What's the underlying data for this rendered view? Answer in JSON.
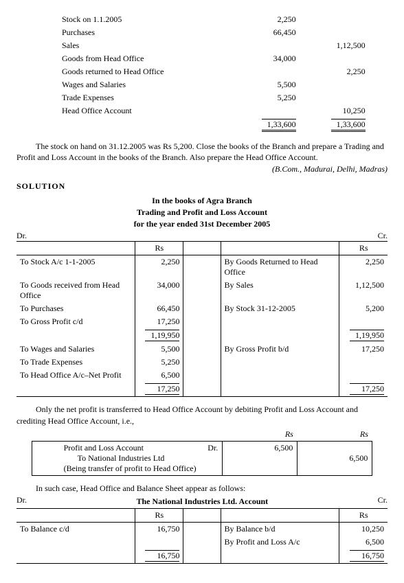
{
  "trial_balance": {
    "rows": [
      {
        "label": "Stock on 1.1.2005",
        "c1": "2,250",
        "c2": ""
      },
      {
        "label": "Purchases",
        "c1": "66,450",
        "c2": ""
      },
      {
        "label": "Sales",
        "c1": "",
        "c2": "1,12,500"
      },
      {
        "label": "Goods from Head Office",
        "c1": "34,000",
        "c2": ""
      },
      {
        "label": "Goods returned to Head Office",
        "c1": "",
        "c2": "2,250"
      },
      {
        "label": "Wages and Salaries",
        "c1": "5,500",
        "c2": ""
      },
      {
        "label": "Trade Expenses",
        "c1": "5,250",
        "c2": ""
      },
      {
        "label": "Head Office Account",
        "c1": "",
        "c2": "10,250"
      }
    ],
    "total1": "1,33,600",
    "total2": "1,33,600"
  },
  "problem_text": "The stock on hand on 31.12.2005 was Rs 5,200. Close the books of the Branch and prepare a Trading and Profit and Loss Account in the books of the Branch. Also prepare the Head Office Account.",
  "citation": "(B.Com., Madurai, Delhi, Madras)",
  "solution_label": "SOLUTION",
  "tpl": {
    "title1": "In the books of Agra Branch",
    "title2": "Trading and Profit and Loss Account",
    "title3": "for the year ended 31st December 2005",
    "dr": "Dr.",
    "cr": "Cr.",
    "rs": "Rs",
    "debit1": [
      {
        "p": "To Stock A/c 1-1-2005",
        "a": "2,250"
      },
      {
        "p": "To Goods received from Head Office",
        "a": "34,000"
      },
      {
        "p": "To Purchases",
        "a": "66,450"
      },
      {
        "p": "To Gross Profit c/d",
        "a": "17,250"
      }
    ],
    "credit1": [
      {
        "p": "By Goods Returned to Head Office",
        "a": "2,250"
      },
      {
        "p": "By Sales",
        "a": "1,12,500"
      },
      {
        "p": "By Stock 31-12-2005",
        "a": "5,200"
      }
    ],
    "total1d": "1,19,950",
    "total1c": "1,19,950",
    "debit2": [
      {
        "p": "To Wages and Salaries",
        "a": "5,500"
      },
      {
        "p": "To Trade Expenses",
        "a": "5,250"
      },
      {
        "p": "To Head Office A/c–Net Profit",
        "a": "6,500"
      }
    ],
    "credit2": [
      {
        "p": "By Gross Profit b/d",
        "a": "17,250"
      }
    ],
    "total2d": "17,250",
    "total2c": "17,250"
  },
  "note1": "Only the net profit is transferred to Head Office Account by debiting Profit and Loss Account and crediting Head Office Account, i.e.,",
  "journal": {
    "line1": "Profit and Loss Account",
    "drmark": "Dr.",
    "line2": "To National Industries Ltd",
    "narration": "(Being transfer of profit to Head Office)",
    "rs": "Rs",
    "amt_dr": "6,500",
    "amt_cr": "6,500"
  },
  "note2": "In such case, Head Office and Balance Sheet appear as follows:",
  "ho": {
    "title": "The National Industries Ltd. Account",
    "dr": "Dr.",
    "cr": "Cr.",
    "rs": "Rs",
    "debit": [
      {
        "p": "To Balance c/d",
        "a": "16,750"
      }
    ],
    "credit": [
      {
        "p": "By Balance b/d",
        "a": "10,250"
      },
      {
        "p": "By Profit and Loss A/c",
        "a": "6,500"
      }
    ],
    "total_d": "16,750",
    "total_c": "16,750"
  }
}
